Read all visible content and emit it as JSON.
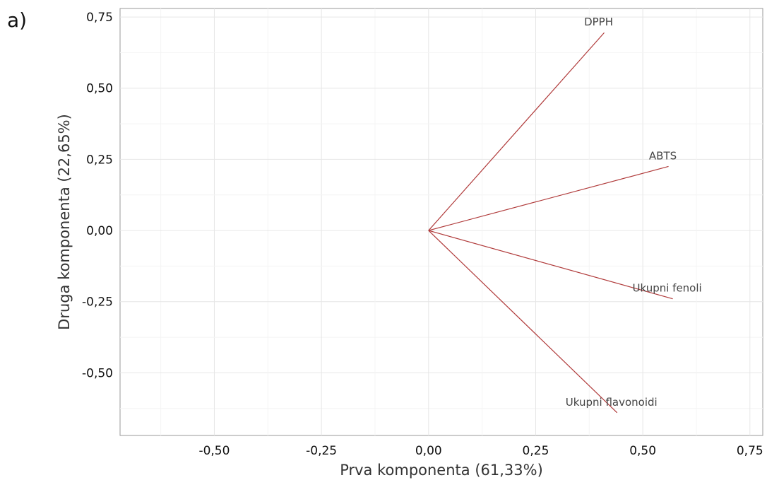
{
  "panel_label": "a)",
  "chart_data": {
    "type": "scatter",
    "subtype": "pca-loading-biplot",
    "xlabel": "Prva komponenta (61,33%)",
    "ylabel": "Druga komponenta (22,65%)",
    "xlim": [
      -0.72,
      0.78
    ],
    "ylim": [
      -0.72,
      0.78
    ],
    "xticks": [
      -0.5,
      -0.25,
      0.0,
      0.25,
      0.5,
      0.75
    ],
    "xtick_labels": [
      "-0,50",
      "-0,25",
      "0,00",
      "0,25",
      "0,50",
      "0,75"
    ],
    "yticks": [
      0.75,
      0.5,
      0.25,
      0.0,
      -0.25,
      -0.5
    ],
    "ytick_labels": [
      "0,75",
      "0,50",
      "0,25",
      "0,00",
      "-0,25",
      "-0,50"
    ],
    "grid": true,
    "vector_color": "#b03a3a",
    "vectors": [
      {
        "name": "DPPH",
        "x": 0.41,
        "y": 0.695
      },
      {
        "name": "ABTS",
        "x": 0.56,
        "y": 0.225
      },
      {
        "name": "Ukupni fenoli",
        "x": 0.57,
        "y": -0.24
      },
      {
        "name": "Ukupni flavonoidi",
        "x": 0.44,
        "y": -0.64
      }
    ]
  }
}
